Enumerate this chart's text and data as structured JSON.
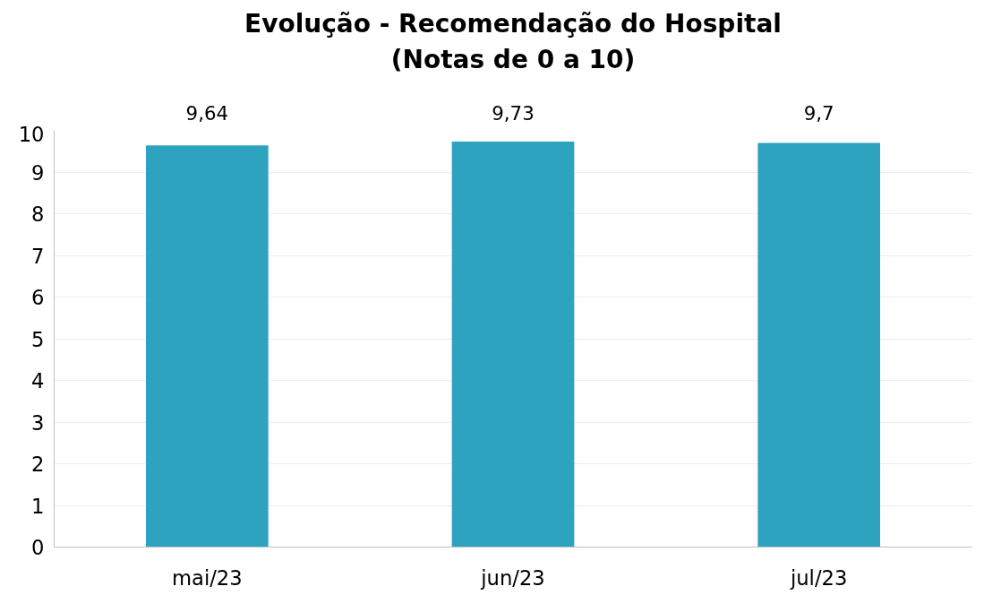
{
  "chart_data": {
    "type": "bar",
    "title": "Evolução - Recomendação do Hospital\n(Notas de 0 a 10)",
    "categories": [
      "mai/23",
      "jun/23",
      "jul/23"
    ],
    "values": [
      9.64,
      9.73,
      9.7
    ],
    "value_labels": [
      "9,64",
      "9,73",
      "9,7"
    ],
    "color": "#2ea3bf",
    "ylim": [
      0,
      10
    ],
    "yticks": [
      0,
      1,
      2,
      3,
      4,
      5,
      6,
      7,
      8,
      9,
      10
    ],
    "grid": "y"
  }
}
